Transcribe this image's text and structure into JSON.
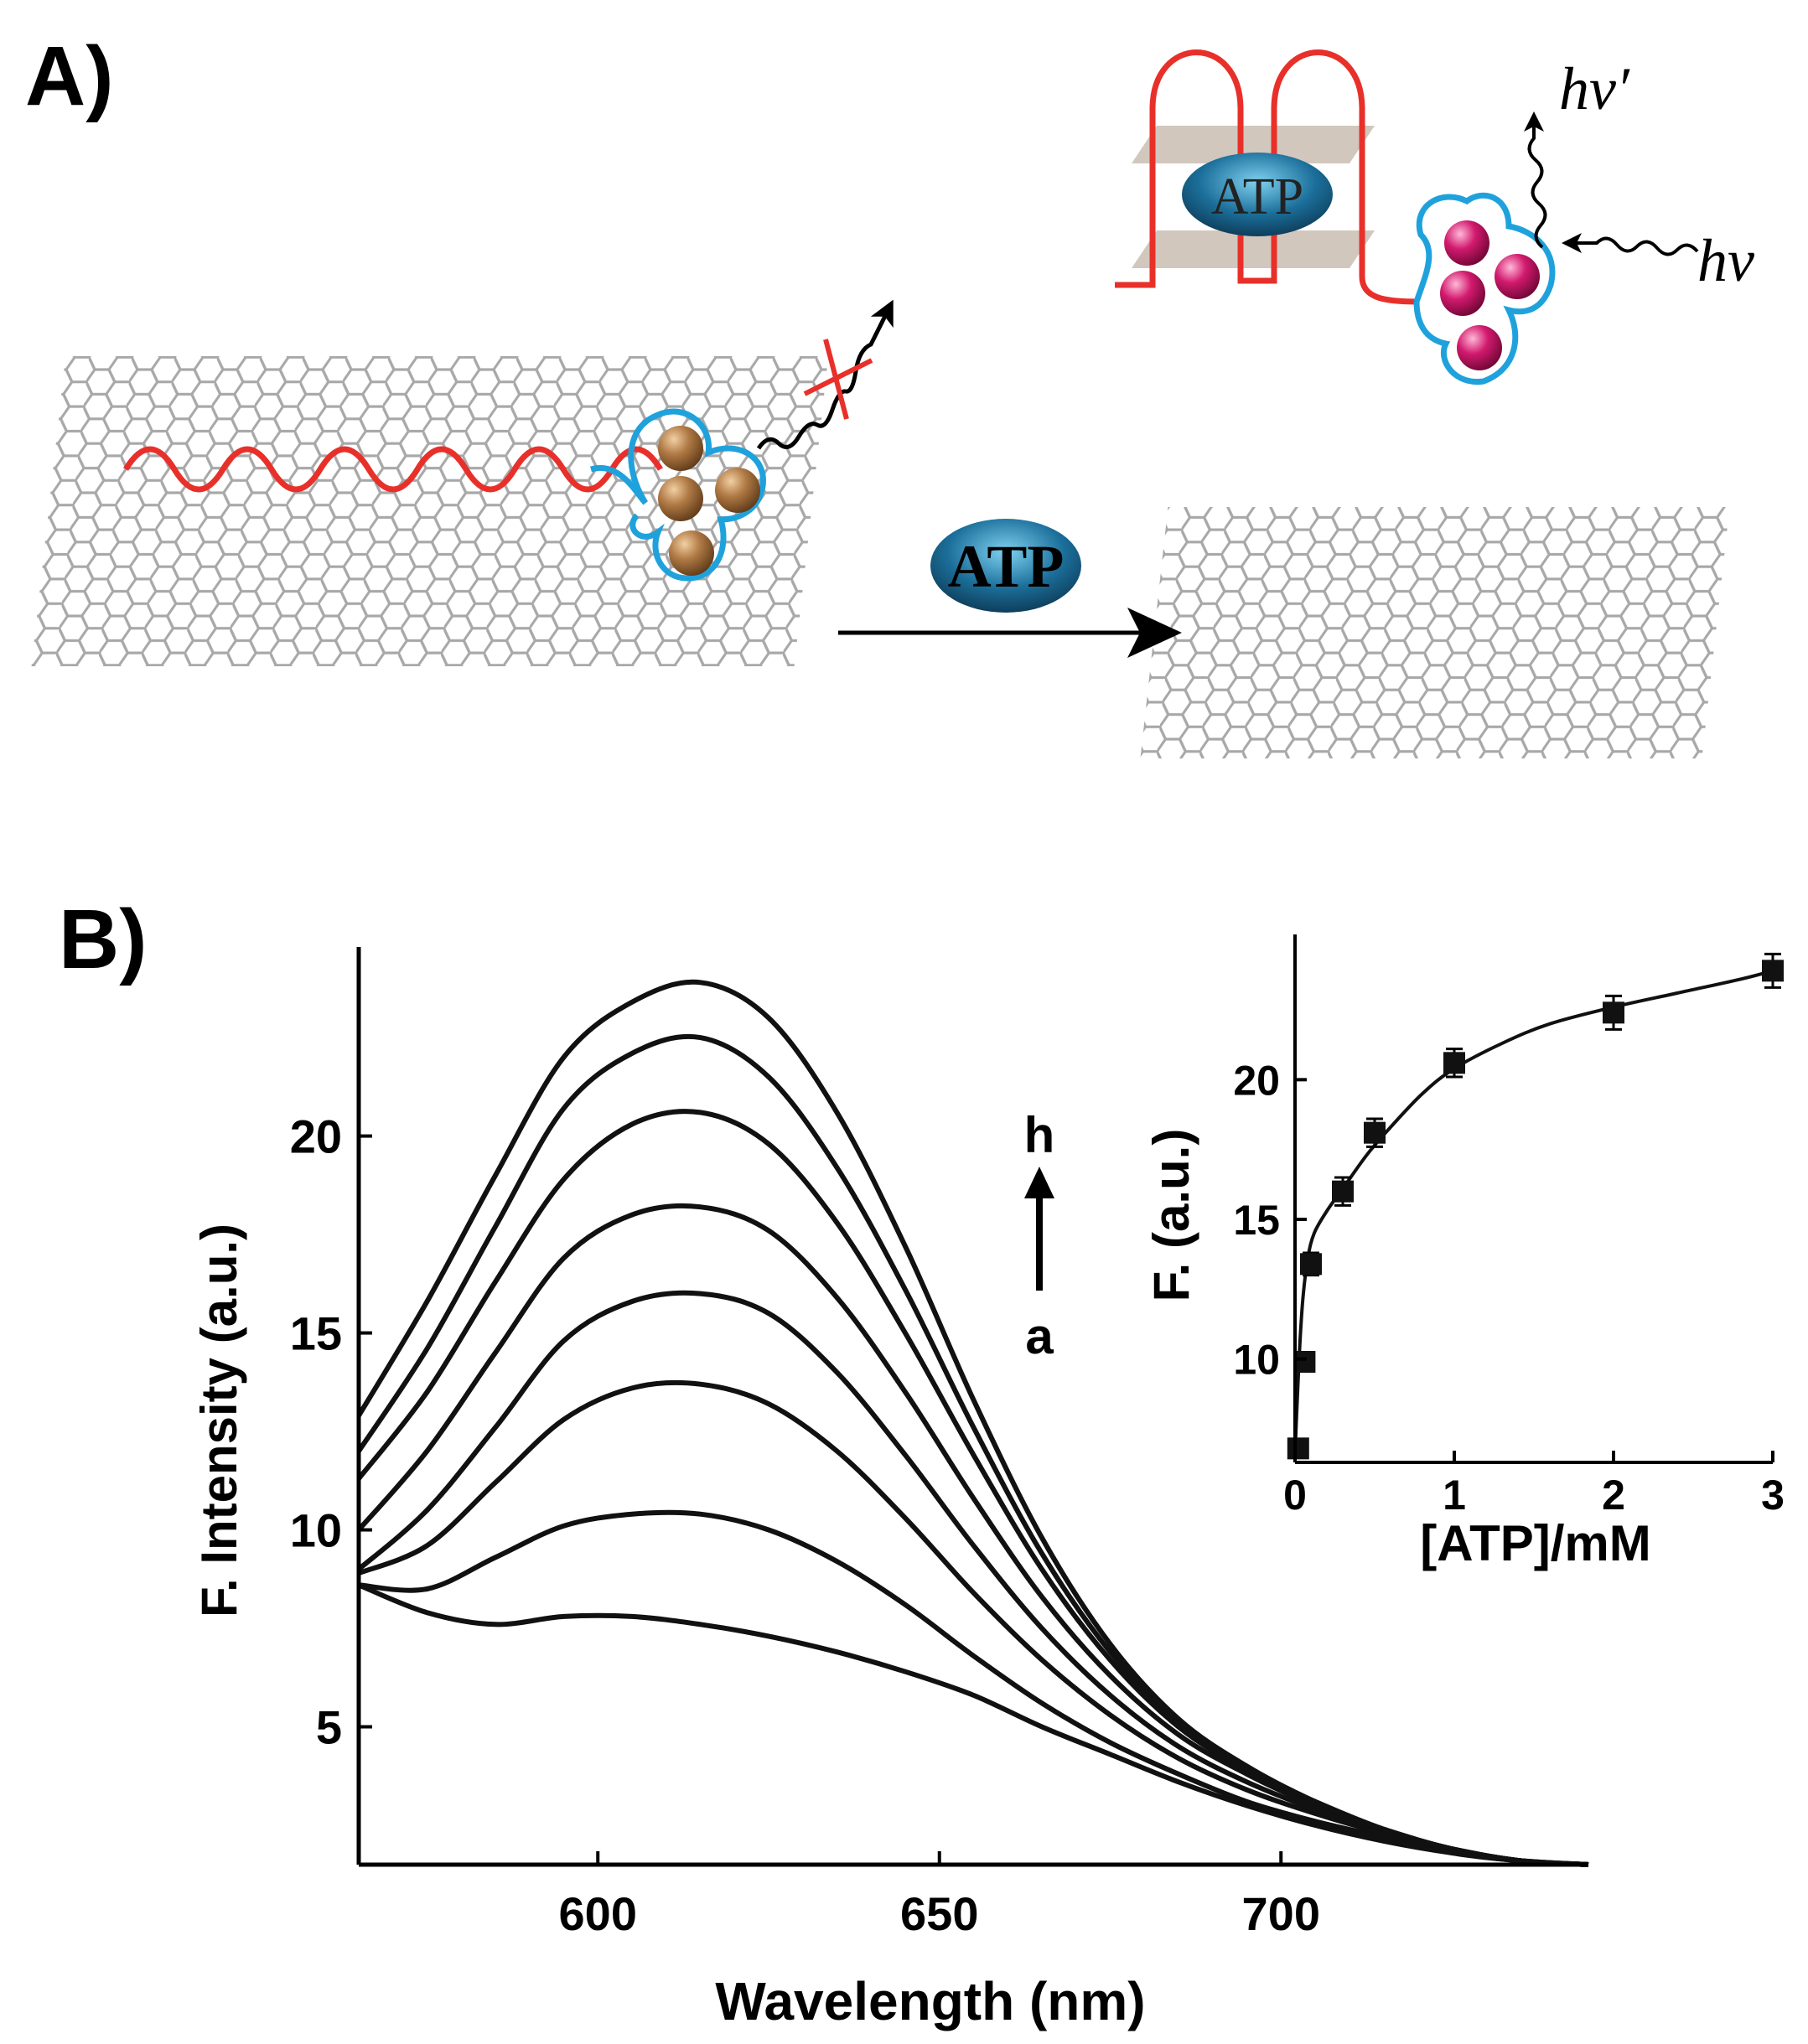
{
  "panel_a": {
    "label": "A)",
    "atp_label_center": "ATP",
    "atp_label_top": "ATP",
    "hv_in": "hν",
    "hv_out": "hν′",
    "colors": {
      "graphene": "#a8a8a8",
      "aptamer": "#e8302a",
      "ligand": "#1fa2dc",
      "quenched_dot": "#a5703f",
      "bright_dot": "#d21a6e",
      "atp_fill": "#1b6f9a",
      "gquad_plane": "#c9bdb2"
    }
  },
  "panel_b": {
    "label": "B)",
    "arrow_top": "h",
    "arrow_bottom": "a"
  },
  "chart_data": [
    {
      "type": "line",
      "xlabel": "Wavelength (nm)",
      "ylabel": "F. Intensity (a.u.)",
      "xlim": [
        565,
        745
      ],
      "ylim": [
        1.5,
        24.8
      ],
      "xticks": [
        600,
        650,
        700
      ],
      "yticks": [
        5,
        10,
        15,
        20
      ],
      "x": [
        565,
        575,
        585,
        595,
        605,
        615,
        625,
        635,
        645,
        655,
        665,
        675,
        685,
        695,
        705,
        715,
        725,
        735,
        745
      ],
      "series": [
        {
          "values": [
            8.6,
            7.9,
            7.6,
            7.8,
            7.8,
            7.6,
            7.3,
            6.9,
            6.4,
            5.8,
            5.0,
            4.3,
            3.6,
            3.0,
            2.5,
            2.1,
            1.8,
            1.6,
            1.5
          ]
        },
        {
          "values": [
            8.6,
            8.5,
            9.3,
            10.1,
            10.4,
            10.4,
            10.0,
            9.2,
            8.1,
            6.8,
            5.6,
            4.6,
            3.8,
            3.1,
            2.6,
            2.2,
            1.8,
            1.6,
            1.5
          ]
        },
        {
          "values": [
            8.9,
            9.6,
            11.2,
            12.8,
            13.6,
            13.7,
            13.2,
            12.0,
            10.3,
            8.4,
            6.7,
            5.3,
            4.2,
            3.4,
            2.8,
            2.3,
            1.9,
            1.6,
            1.5
          ]
        },
        {
          "values": [
            9.0,
            10.5,
            12.6,
            14.8,
            15.8,
            16.0,
            15.5,
            14.0,
            11.9,
            9.6,
            7.5,
            5.8,
            4.5,
            3.6,
            2.9,
            2.3,
            1.9,
            1.6,
            1.5
          ]
        },
        {
          "values": [
            10.0,
            12.0,
            14.5,
            16.9,
            18.0,
            18.2,
            17.6,
            15.9,
            13.5,
            10.8,
            8.3,
            6.3,
            4.8,
            3.8,
            3.0,
            2.4,
            1.9,
            1.6,
            1.5
          ]
        },
        {
          "values": [
            11.3,
            13.5,
            16.3,
            18.9,
            20.3,
            20.6,
            19.8,
            17.8,
            15.0,
            11.9,
            9.0,
            6.7,
            5.0,
            3.9,
            3.1,
            2.4,
            1.9,
            1.6,
            1.5
          ]
        },
        {
          "values": [
            12.0,
            14.6,
            17.7,
            20.7,
            22.1,
            22.5,
            21.5,
            19.2,
            16.1,
            12.6,
            9.4,
            6.9,
            5.1,
            3.9,
            3.1,
            2.4,
            1.9,
            1.6,
            1.5
          ]
        },
        {
          "values": [
            12.9,
            15.8,
            19.0,
            22.0,
            23.4,
            23.9,
            23.0,
            20.6,
            17.2,
            13.3,
            9.8,
            7.1,
            5.2,
            4.0,
            3.1,
            2.4,
            1.9,
            1.6,
            1.5
          ]
        }
      ]
    },
    {
      "type": "scatter",
      "xlabel": "[ATP]/mM",
      "ylabel": "F. (a.u.)",
      "xlim": [
        0,
        3
      ],
      "ylim": [
        6.3,
        25.2
      ],
      "xticks": [
        0,
        1,
        2,
        3
      ],
      "yticks": [
        10,
        15,
        20
      ],
      "x": [
        0.02,
        0.06,
        0.1,
        0.3,
        0.5,
        1.0,
        2.0,
        3.0
      ],
      "values": [
        6.8,
        9.9,
        13.4,
        16.0,
        18.1,
        20.6,
        22.4,
        23.9
      ],
      "errors": [
        0.2,
        0.3,
        0.4,
        0.5,
        0.5,
        0.5,
        0.6,
        0.6
      ],
      "fit": {
        "x": [
          0.0,
          0.01,
          0.03,
          0.05,
          0.08,
          0.12,
          0.2,
          0.3,
          0.45,
          0.6,
          0.8,
          1.0,
          1.3,
          1.6,
          2.0,
          2.4,
          2.8,
          3.0
        ],
        "values": [
          6.6,
          8.0,
          10.5,
          12.2,
          13.6,
          14.5,
          15.3,
          16.1,
          17.3,
          18.3,
          19.5,
          20.4,
          21.3,
          22.0,
          22.6,
          23.1,
          23.6,
          23.9
        ]
      }
    }
  ]
}
